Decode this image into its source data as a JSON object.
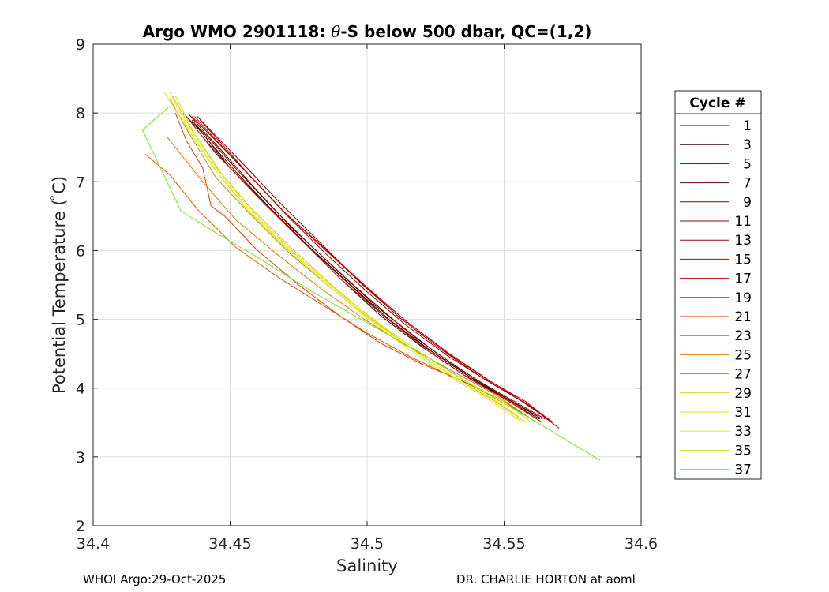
{
  "chart_data": {
    "type": "line",
    "title_prefix": "Argo WMO 2901118: ",
    "title_symbol": "θ",
    "title_suffix": "-S below 500 dbar,  QC=(1,2)",
    "xlabel": "Salinity",
    "ylabel": "Potential Temperature ( ̊C)",
    "xlim": [
      34.4,
      34.6
    ],
    "ylim": [
      2,
      9
    ],
    "xticks": [
      34.4,
      34.45,
      34.5,
      34.55,
      34.6
    ],
    "xtick_labels": [
      "34.4",
      "34.45",
      "34.5",
      "34.55",
      "34.6"
    ],
    "yticks": [
      2,
      3,
      4,
      5,
      6,
      7,
      8,
      9
    ],
    "ytick_labels": [
      "2",
      "3",
      "4",
      "5",
      "6",
      "7",
      "8",
      "9"
    ],
    "grid": true,
    "legend_title": "Cycle #",
    "legend_position": "outside-right",
    "series": [
      {
        "name": "1",
        "color": "#300000",
        "x": [
          34.433,
          34.437,
          34.445,
          34.46,
          34.475,
          34.49,
          34.505,
          34.52,
          34.535,
          34.55,
          34.563
        ],
        "y": [
          8.0,
          7.8,
          7.4,
          6.8,
          6.2,
          5.6,
          5.05,
          4.6,
          4.2,
          3.85,
          3.55
        ]
      },
      {
        "name": "3",
        "color": "#420000",
        "x": [
          34.434,
          34.44,
          34.45,
          34.462,
          34.476,
          34.491,
          34.506,
          34.521,
          34.536,
          34.55,
          34.562
        ],
        "y": [
          7.95,
          7.7,
          7.2,
          6.7,
          6.15,
          5.6,
          5.05,
          4.6,
          4.2,
          3.85,
          3.55
        ]
      },
      {
        "name": "5",
        "color": "#540000",
        "x": [
          34.436,
          34.442,
          34.452,
          34.465,
          34.479,
          34.494,
          34.508,
          34.523,
          34.538,
          34.552,
          34.564
        ],
        "y": [
          7.9,
          7.6,
          7.15,
          6.6,
          6.05,
          5.5,
          5.0,
          4.55,
          4.15,
          3.82,
          3.55
        ]
      },
      {
        "name": "7",
        "color": "#660000",
        "x": [
          34.435,
          34.44,
          34.447,
          34.458,
          34.472,
          34.488,
          34.503,
          34.518,
          34.533,
          34.548,
          34.562
        ],
        "y": [
          7.98,
          7.75,
          7.45,
          6.95,
          6.35,
          5.75,
          5.2,
          4.72,
          4.3,
          3.92,
          3.6
        ]
      },
      {
        "name": "9",
        "color": "#780000",
        "x": [
          34.437,
          34.443,
          34.453,
          34.466,
          34.48,
          34.495,
          34.51,
          34.525,
          34.54,
          34.554,
          34.565
        ],
        "y": [
          7.85,
          7.6,
          7.15,
          6.6,
          6.05,
          5.5,
          4.98,
          4.52,
          4.12,
          3.8,
          3.55
        ]
      },
      {
        "name": "11",
        "color": "#8a0000",
        "x": [
          34.438,
          34.444,
          34.455,
          34.468,
          34.482,
          34.497,
          34.512,
          34.527,
          34.542,
          34.556,
          34.566
        ],
        "y": [
          7.95,
          7.7,
          7.25,
          6.7,
          6.15,
          5.55,
          5.02,
          4.56,
          4.15,
          3.82,
          3.55
        ]
      },
      {
        "name": "13",
        "color": "#9c0000",
        "x": [
          34.436,
          34.446,
          34.458,
          34.471,
          34.485,
          34.5,
          34.514,
          34.529,
          34.544,
          34.558,
          34.568
        ],
        "y": [
          7.95,
          7.55,
          7.05,
          6.5,
          5.95,
          5.4,
          4.92,
          4.48,
          4.1,
          3.78,
          3.5
        ]
      },
      {
        "name": "15",
        "color": "#ae0000",
        "x": [
          34.439,
          34.447,
          34.458,
          34.47,
          34.484,
          34.499,
          34.514,
          34.529,
          34.544,
          34.558,
          34.567
        ],
        "y": [
          7.9,
          7.55,
          7.05,
          6.55,
          6.05,
          5.5,
          4.98,
          4.52,
          4.12,
          3.8,
          3.52
        ]
      },
      {
        "name": "17",
        "color": "#c00000",
        "x": [
          34.437,
          34.445,
          34.457,
          34.47,
          34.485,
          34.5,
          34.515,
          34.53,
          34.545,
          34.559,
          34.57
        ],
        "y": [
          7.95,
          7.6,
          7.1,
          6.55,
          6.0,
          5.45,
          4.95,
          4.5,
          4.1,
          3.75,
          3.42
        ]
      },
      {
        "name": "19",
        "color": "#d21e00",
        "x": [
          34.433,
          34.44,
          34.45,
          34.462,
          34.476,
          34.49,
          34.506,
          34.522,
          34.538,
          34.553,
          34.564
        ],
        "y": [
          8.0,
          7.65,
          7.2,
          6.7,
          6.15,
          5.6,
          5.05,
          4.55,
          4.12,
          3.78,
          3.5
        ]
      },
      {
        "name": "21",
        "color": "#dc3c00",
        "x": [
          34.43,
          34.434,
          34.44,
          34.443,
          34.448,
          34.46,
          34.475,
          34.49,
          34.505,
          34.52,
          34.535,
          34.55,
          34.562
        ],
        "y": [
          8.0,
          7.6,
          7.2,
          6.65,
          6.5,
          6.0,
          5.5,
          5.05,
          4.65,
          4.35,
          4.1,
          3.8,
          3.5
        ]
      },
      {
        "name": "23",
        "color": "#e05a00",
        "x": [
          34.419,
          34.428,
          34.438,
          34.452,
          34.468,
          34.484,
          34.5,
          34.516,
          34.532,
          34.548,
          34.56
        ],
        "y": [
          7.4,
          7.1,
          6.6,
          6.05,
          5.6,
          5.2,
          4.8,
          4.45,
          4.15,
          3.85,
          3.55
        ]
      },
      {
        "name": "25",
        "color": "#e27800",
        "x": [
          34.427,
          34.433,
          34.44,
          34.452,
          34.467,
          34.483,
          34.499,
          34.515,
          34.531,
          34.547,
          34.56
        ],
        "y": [
          7.65,
          7.35,
          7.0,
          6.45,
          5.95,
          5.45,
          5.0,
          4.6,
          4.25,
          3.9,
          3.55
        ]
      },
      {
        "name": "27",
        "color": "#a0a000",
        "x": [
          34.428,
          34.435,
          34.445,
          34.458,
          34.472,
          34.487,
          34.502,
          34.517,
          34.532,
          34.547,
          34.558
        ],
        "y": [
          8.2,
          7.7,
          7.05,
          6.5,
          5.95,
          5.45,
          4.98,
          4.55,
          4.15,
          3.8,
          3.5
        ]
      },
      {
        "name": "29",
        "color": "#e0c800",
        "x": [
          34.429,
          34.436,
          34.446,
          34.458,
          34.472,
          34.487,
          34.502,
          34.517,
          34.532,
          34.547,
          34.558
        ],
        "y": [
          8.25,
          7.75,
          7.15,
          6.6,
          6.05,
          5.5,
          5.0,
          4.55,
          4.15,
          3.8,
          3.5
        ]
      },
      {
        "name": "31",
        "color": "#f0e000",
        "x": [
          34.426,
          34.434,
          34.444,
          34.456,
          34.47,
          34.485,
          34.5,
          34.515,
          34.53,
          34.545,
          34.556
        ],
        "y": [
          8.3,
          7.8,
          7.2,
          6.6,
          6.05,
          5.52,
          5.02,
          4.57,
          4.17,
          3.82,
          3.52
        ]
      },
      {
        "name": "33",
        "color": "#e8f000",
        "x": [
          34.428,
          34.435,
          34.446,
          34.459,
          34.473,
          34.488,
          34.503,
          34.518,
          34.533,
          34.548,
          34.558
        ],
        "y": [
          8.3,
          7.75,
          7.1,
          6.5,
          5.95,
          5.42,
          4.95,
          4.52,
          4.13,
          3.8,
          3.5
        ]
      },
      {
        "name": "35",
        "color": "#c4ec20",
        "x": [
          34.43,
          34.437,
          34.448,
          34.461,
          34.475,
          34.49,
          34.505,
          34.52,
          34.535,
          34.55,
          34.56
        ],
        "y": [
          8.25,
          7.7,
          7.05,
          6.45,
          5.9,
          5.38,
          4.92,
          4.5,
          4.12,
          3.8,
          3.5
        ]
      },
      {
        "name": "37",
        "color": "#80e030",
        "x": [
          34.428,
          34.418,
          34.432,
          34.445,
          34.46,
          34.48,
          34.5,
          34.52,
          34.54,
          34.56,
          34.585
        ],
        "y": [
          8.1,
          7.75,
          6.58,
          6.25,
          5.9,
          5.4,
          4.95,
          4.5,
          4.0,
          3.55,
          2.95
        ]
      }
    ]
  },
  "footer": {
    "left": "WHOI Argo:29-Oct-2025",
    "right": "DR. CHARLIE HORTON at aoml"
  }
}
